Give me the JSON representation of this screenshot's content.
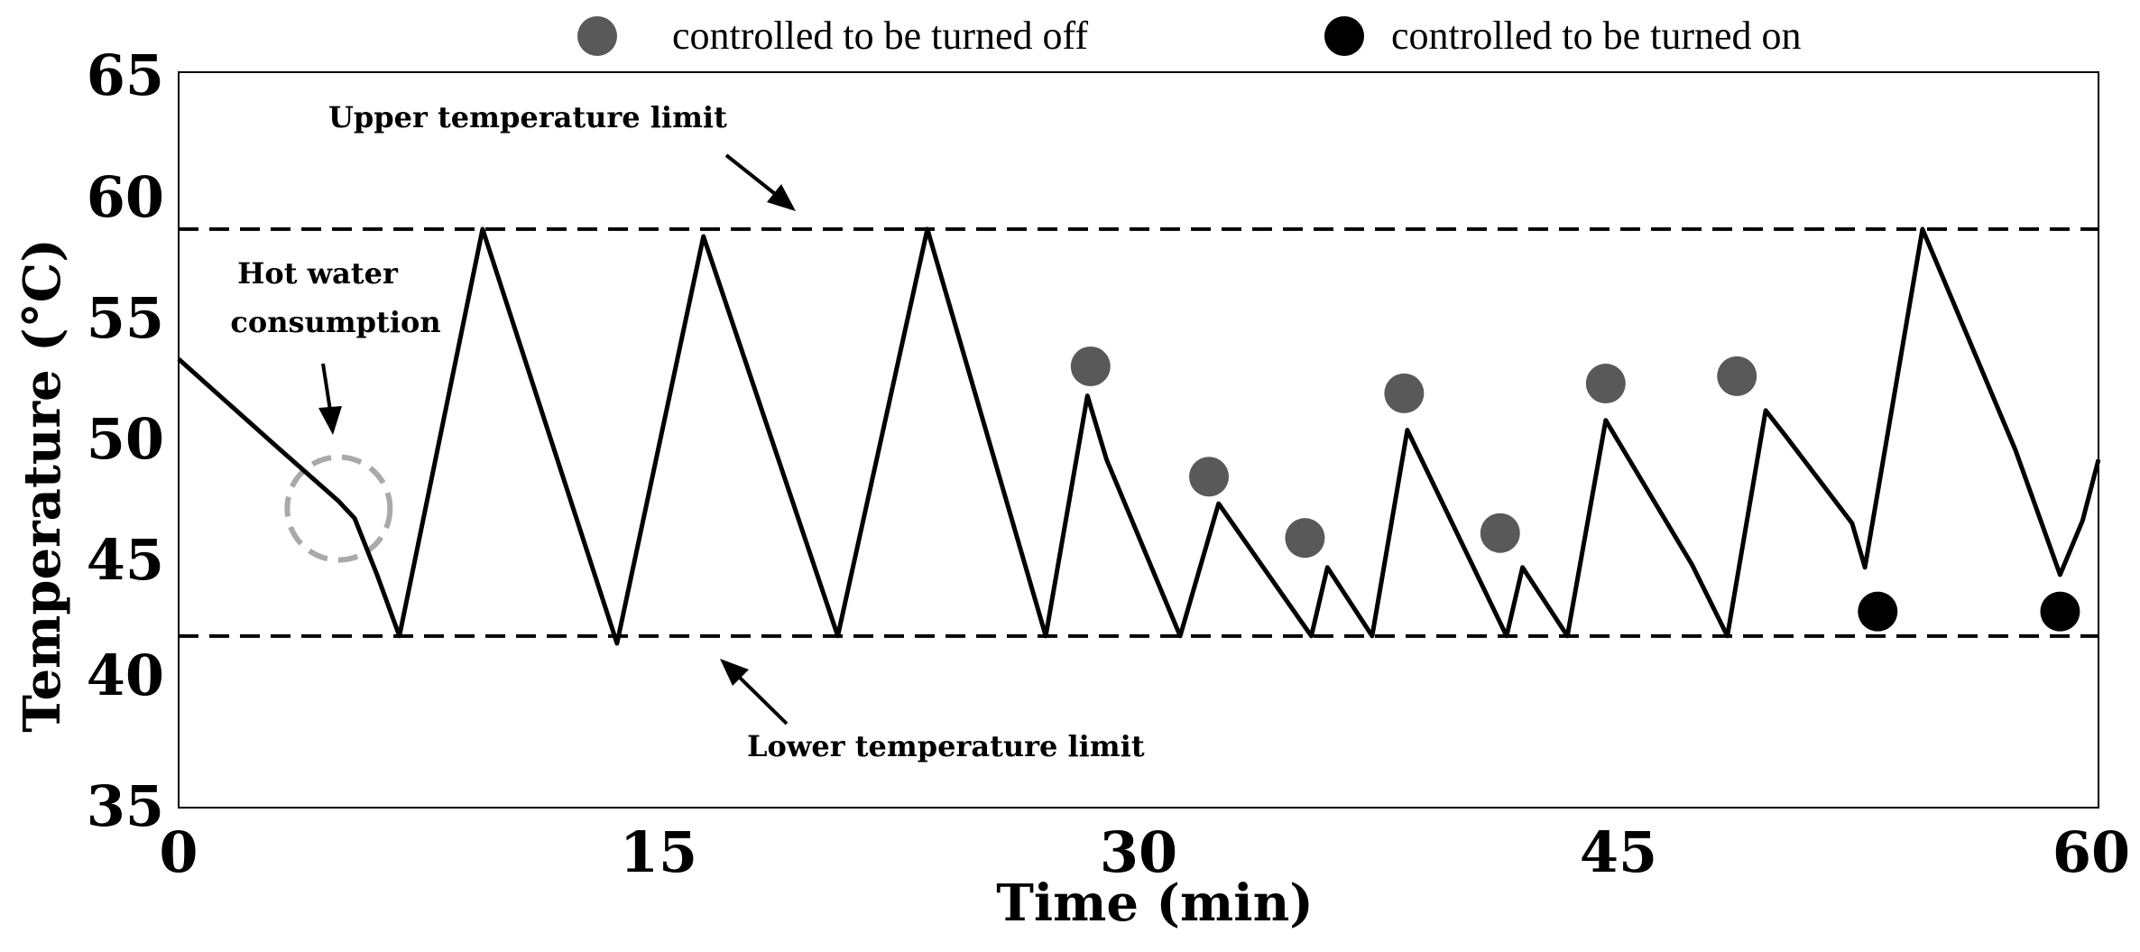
{
  "chart_data": {
    "type": "line",
    "title": "",
    "xlabel": "Time (min)",
    "ylabel": "Temperature (°C)",
    "xlim": [
      0,
      60
    ],
    "ylim": [
      35,
      65
    ],
    "xticks": [
      "0",
      "15",
      "30",
      "45",
      "60"
    ],
    "xtick_values": [
      0,
      15,
      30,
      45,
      60
    ],
    "yticks": [
      "35",
      "40",
      "45",
      "50",
      "55",
      "60",
      "65"
    ],
    "ytick_values": [
      35,
      40,
      45,
      50,
      55,
      60,
      65
    ],
    "grid": false,
    "series": [
      {
        "name": "Temperature",
        "color": "#000000",
        "points": [
          [
            0,
            53.3
          ],
          [
            3.0,
            49.8
          ],
          [
            5.0,
            47.5
          ],
          [
            5.5,
            46.8
          ],
          [
            6.2,
            44.5
          ],
          [
            6.9,
            42.0
          ],
          [
            9.5,
            58.6
          ],
          [
            13.7,
            41.7
          ],
          [
            16.4,
            58.3
          ],
          [
            20.6,
            42.0
          ],
          [
            23.4,
            58.6
          ],
          [
            27.1,
            42.0
          ],
          [
            28.4,
            51.8
          ],
          [
            29.0,
            49.2
          ],
          [
            31.3,
            42.0
          ],
          [
            32.5,
            47.4
          ],
          [
            35.4,
            42.0
          ],
          [
            35.9,
            44.8
          ],
          [
            37.3,
            42.0
          ],
          [
            38.4,
            50.4
          ],
          [
            41.5,
            42.0
          ],
          [
            42.0,
            44.8
          ],
          [
            43.4,
            42.0
          ],
          [
            44.6,
            50.8
          ],
          [
            47.3,
            44.9
          ],
          [
            48.4,
            42.0
          ],
          [
            49.6,
            51.2
          ],
          [
            50.2,
            50.2
          ],
          [
            52.3,
            46.6
          ],
          [
            52.7,
            44.8
          ],
          [
            54.5,
            58.6
          ],
          [
            57.4,
            49.6
          ],
          [
            58.8,
            44.5
          ],
          [
            59.5,
            46.7
          ],
          [
            60,
            49.2
          ]
        ]
      }
    ],
    "reference_lines": [
      {
        "name": "Upper temperature limit",
        "y": 58.6,
        "style": "dashed"
      },
      {
        "name": "Lower temperature limit",
        "y": 42.0,
        "style": "dashed"
      }
    ],
    "markers": {
      "off": {
        "label": "controlled to be turned off",
        "color": "#595959",
        "points": [
          [
            28.5,
            53.0
          ],
          [
            32.2,
            48.5
          ],
          [
            35.2,
            46.0
          ],
          [
            38.3,
            51.9
          ],
          [
            41.3,
            46.2
          ],
          [
            44.6,
            52.3
          ],
          [
            48.7,
            52.6
          ]
        ]
      },
      "on": {
        "label": "controlled to be turned on",
        "color": "#000000",
        "points": [
          [
            53.1,
            43.0
          ],
          [
            58.8,
            43.0
          ]
        ]
      }
    },
    "annotations": {
      "upper": "Upper temperature limit",
      "lower": "Lower temperature limit",
      "hot_water_line1": "Hot water",
      "hot_water_line2": "consumption"
    },
    "hot_water_circle": {
      "x": 5.0,
      "y": 47.2
    }
  }
}
